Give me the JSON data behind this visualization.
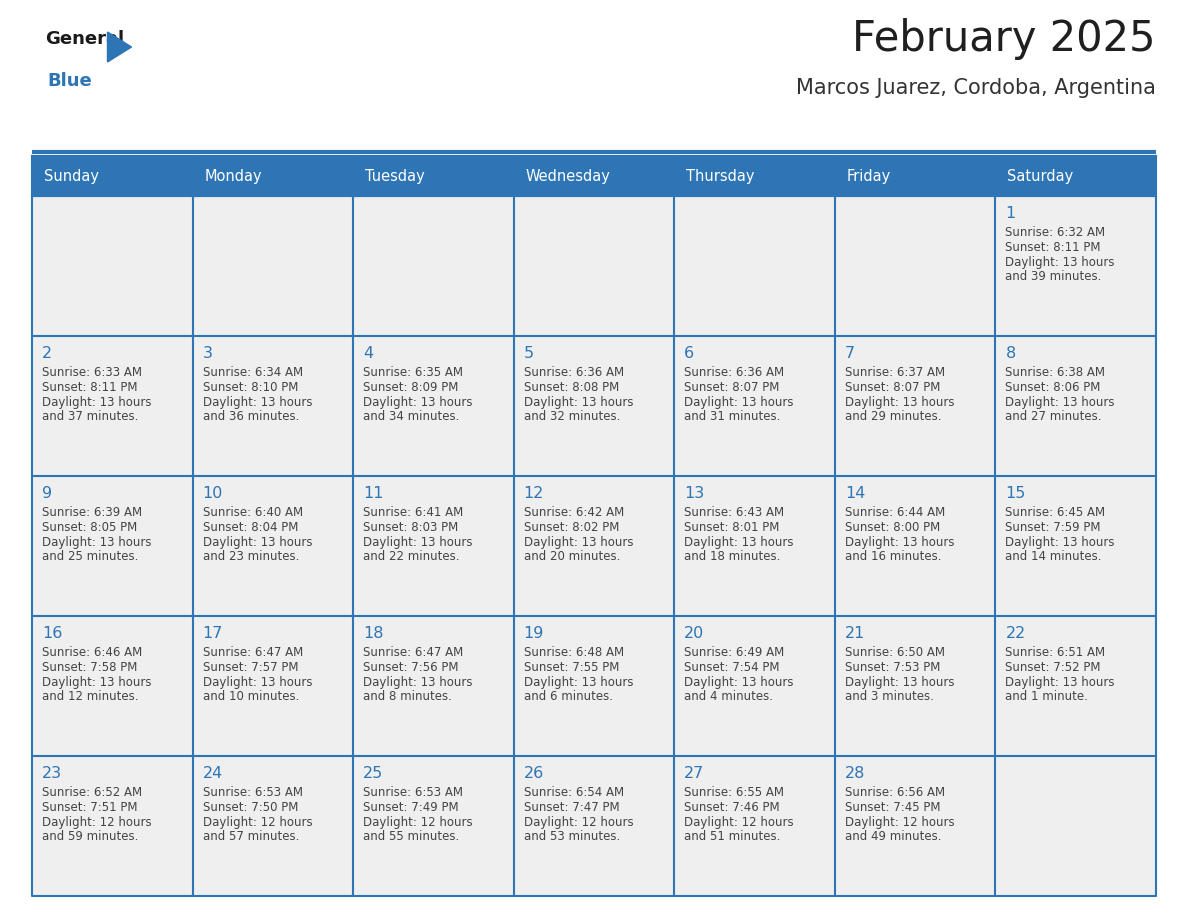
{
  "title": "February 2025",
  "subtitle": "Marcos Juarez, Cordoba, Argentina",
  "header_bg": "#2E75B6",
  "header_text_color": "#FFFFFF",
  "cell_bg_light": "#EFEFEF",
  "cell_bg_white": "#FFFFFF",
  "border_color": "#2E75B6",
  "sep_line_color": "#2E75B6",
  "day_names": [
    "Sunday",
    "Monday",
    "Tuesday",
    "Wednesday",
    "Thursday",
    "Friday",
    "Saturday"
  ],
  "title_color": "#1F1F1F",
  "subtitle_color": "#333333",
  "day_num_color": "#2E75B6",
  "info_color": "#444444",
  "logo_general_color": "#1A1A1A",
  "logo_blue_color": "#2E75B6",
  "days": [
    {
      "day": 1,
      "col": 6,
      "row": 0,
      "sunrise": "6:32 AM",
      "sunset": "8:11 PM",
      "daylight_h": "13 hours",
      "daylight_m": "39 minutes."
    },
    {
      "day": 2,
      "col": 0,
      "row": 1,
      "sunrise": "6:33 AM",
      "sunset": "8:11 PM",
      "daylight_h": "13 hours",
      "daylight_m": "37 minutes."
    },
    {
      "day": 3,
      "col": 1,
      "row": 1,
      "sunrise": "6:34 AM",
      "sunset": "8:10 PM",
      "daylight_h": "13 hours",
      "daylight_m": "36 minutes."
    },
    {
      "day": 4,
      "col": 2,
      "row": 1,
      "sunrise": "6:35 AM",
      "sunset": "8:09 PM",
      "daylight_h": "13 hours",
      "daylight_m": "34 minutes."
    },
    {
      "day": 5,
      "col": 3,
      "row": 1,
      "sunrise": "6:36 AM",
      "sunset": "8:08 PM",
      "daylight_h": "13 hours",
      "daylight_m": "32 minutes."
    },
    {
      "day": 6,
      "col": 4,
      "row": 1,
      "sunrise": "6:36 AM",
      "sunset": "8:07 PM",
      "daylight_h": "13 hours",
      "daylight_m": "31 minutes."
    },
    {
      "day": 7,
      "col": 5,
      "row": 1,
      "sunrise": "6:37 AM",
      "sunset": "8:07 PM",
      "daylight_h": "13 hours",
      "daylight_m": "29 minutes."
    },
    {
      "day": 8,
      "col": 6,
      "row": 1,
      "sunrise": "6:38 AM",
      "sunset": "8:06 PM",
      "daylight_h": "13 hours",
      "daylight_m": "27 minutes."
    },
    {
      "day": 9,
      "col": 0,
      "row": 2,
      "sunrise": "6:39 AM",
      "sunset": "8:05 PM",
      "daylight_h": "13 hours",
      "daylight_m": "25 minutes."
    },
    {
      "day": 10,
      "col": 1,
      "row": 2,
      "sunrise": "6:40 AM",
      "sunset": "8:04 PM",
      "daylight_h": "13 hours",
      "daylight_m": "23 minutes."
    },
    {
      "day": 11,
      "col": 2,
      "row": 2,
      "sunrise": "6:41 AM",
      "sunset": "8:03 PM",
      "daylight_h": "13 hours",
      "daylight_m": "22 minutes."
    },
    {
      "day": 12,
      "col": 3,
      "row": 2,
      "sunrise": "6:42 AM",
      "sunset": "8:02 PM",
      "daylight_h": "13 hours",
      "daylight_m": "20 minutes."
    },
    {
      "day": 13,
      "col": 4,
      "row": 2,
      "sunrise": "6:43 AM",
      "sunset": "8:01 PM",
      "daylight_h": "13 hours",
      "daylight_m": "18 minutes."
    },
    {
      "day": 14,
      "col": 5,
      "row": 2,
      "sunrise": "6:44 AM",
      "sunset": "8:00 PM",
      "daylight_h": "13 hours",
      "daylight_m": "16 minutes."
    },
    {
      "day": 15,
      "col": 6,
      "row": 2,
      "sunrise": "6:45 AM",
      "sunset": "7:59 PM",
      "daylight_h": "13 hours",
      "daylight_m": "14 minutes."
    },
    {
      "day": 16,
      "col": 0,
      "row": 3,
      "sunrise": "6:46 AM",
      "sunset": "7:58 PM",
      "daylight_h": "13 hours",
      "daylight_m": "12 minutes."
    },
    {
      "day": 17,
      "col": 1,
      "row": 3,
      "sunrise": "6:47 AM",
      "sunset": "7:57 PM",
      "daylight_h": "13 hours",
      "daylight_m": "10 minutes."
    },
    {
      "day": 18,
      "col": 2,
      "row": 3,
      "sunrise": "6:47 AM",
      "sunset": "7:56 PM",
      "daylight_h": "13 hours",
      "daylight_m": "8 minutes."
    },
    {
      "day": 19,
      "col": 3,
      "row": 3,
      "sunrise": "6:48 AM",
      "sunset": "7:55 PM",
      "daylight_h": "13 hours",
      "daylight_m": "6 minutes."
    },
    {
      "day": 20,
      "col": 4,
      "row": 3,
      "sunrise": "6:49 AM",
      "sunset": "7:54 PM",
      "daylight_h": "13 hours",
      "daylight_m": "4 minutes."
    },
    {
      "day": 21,
      "col": 5,
      "row": 3,
      "sunrise": "6:50 AM",
      "sunset": "7:53 PM",
      "daylight_h": "13 hours",
      "daylight_m": "3 minutes."
    },
    {
      "day": 22,
      "col": 6,
      "row": 3,
      "sunrise": "6:51 AM",
      "sunset": "7:52 PM",
      "daylight_h": "13 hours",
      "daylight_m": "1 minute."
    },
    {
      "day": 23,
      "col": 0,
      "row": 4,
      "sunrise": "6:52 AM",
      "sunset": "7:51 PM",
      "daylight_h": "12 hours",
      "daylight_m": "59 minutes."
    },
    {
      "day": 24,
      "col": 1,
      "row": 4,
      "sunrise": "6:53 AM",
      "sunset": "7:50 PM",
      "daylight_h": "12 hours",
      "daylight_m": "57 minutes."
    },
    {
      "day": 25,
      "col": 2,
      "row": 4,
      "sunrise": "6:53 AM",
      "sunset": "7:49 PM",
      "daylight_h": "12 hours",
      "daylight_m": "55 minutes."
    },
    {
      "day": 26,
      "col": 3,
      "row": 4,
      "sunrise": "6:54 AM",
      "sunset": "7:47 PM",
      "daylight_h": "12 hours",
      "daylight_m": "53 minutes."
    },
    {
      "day": 27,
      "col": 4,
      "row": 4,
      "sunrise": "6:55 AM",
      "sunset": "7:46 PM",
      "daylight_h": "12 hours",
      "daylight_m": "51 minutes."
    },
    {
      "day": 28,
      "col": 5,
      "row": 4,
      "sunrise": "6:56 AM",
      "sunset": "7:45 PM",
      "daylight_h": "12 hours",
      "daylight_m": "49 minutes."
    }
  ]
}
